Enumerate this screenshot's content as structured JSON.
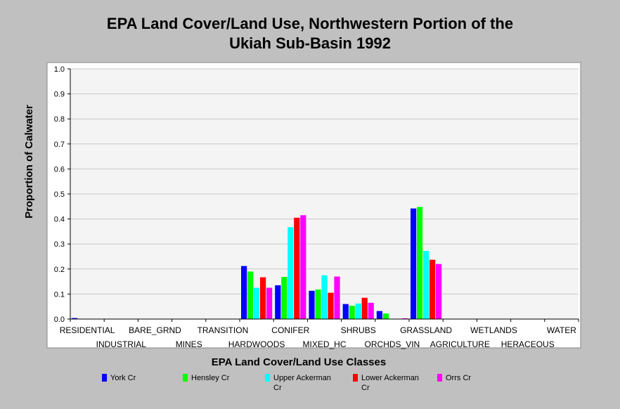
{
  "title_line1": "EPA Land Cover/Land Use, Northwestern Portion of the",
  "title_line2": "Ukiah Sub-Basin 1992",
  "chart_data": {
    "type": "bar",
    "title": "EPA Land Cover/Land Use, Northwestern Portion of the Ukiah Sub-Basin 1992",
    "xlabel": "EPA Land Cover/Land Use Classes",
    "ylabel": "Proportion of Calwater",
    "ylim": [
      0,
      1.0
    ],
    "yticks": [
      "0.0",
      "0.1",
      "0.2",
      "0.3",
      "0.4",
      "0.5",
      "0.6",
      "0.7",
      "0.8",
      "0.9",
      "1.0"
    ],
    "grid": true,
    "legend_position": "bottom",
    "categories": [
      "RESIDENTIAL",
      "INDUSTRIAL",
      "BARE_GRND",
      "MINES",
      "TRANSITION",
      "HARDWOODS",
      "CONIFER",
      "MIXED_HC",
      "SHRUBS",
      "ORCHDS_VIN",
      "GRASSLAND",
      "AGRICULTURE",
      "WETLANDS",
      "HERACEOUS",
      "WATER"
    ],
    "series": [
      {
        "name": "York Cr",
        "color": "#0000ff",
        "values": [
          0.004,
          0,
          0,
          0,
          0,
          0.212,
          0.135,
          0.113,
          0.06,
          0.032,
          0.442,
          0,
          0,
          0,
          0
        ]
      },
      {
        "name": "Hensley Cr",
        "color": "#00ff00",
        "values": [
          0,
          0,
          0,
          0,
          0,
          0.19,
          0.168,
          0.118,
          0.053,
          0.022,
          0.448,
          0,
          0,
          0,
          0
        ]
      },
      {
        "name": "Upper Ackerman Cr",
        "color": "#00ffff",
        "values": [
          0,
          0,
          0,
          0,
          0,
          0.125,
          0.367,
          0.175,
          0.062,
          0,
          0.272,
          0,
          0,
          0,
          0
        ]
      },
      {
        "name": "Lower Ackerman Cr",
        "color": "#ff0000",
        "values": [
          0,
          0,
          0,
          0,
          0,
          0.167,
          0.405,
          0.105,
          0.085,
          0,
          0.237,
          0,
          0,
          0,
          0
        ]
      },
      {
        "name": "Orrs Cr",
        "color": "#ff00ff",
        "values": [
          0,
          0,
          0,
          0,
          0,
          0.125,
          0.415,
          0.17,
          0.065,
          0.003,
          0.22,
          0,
          0,
          0,
          0
        ]
      }
    ]
  }
}
